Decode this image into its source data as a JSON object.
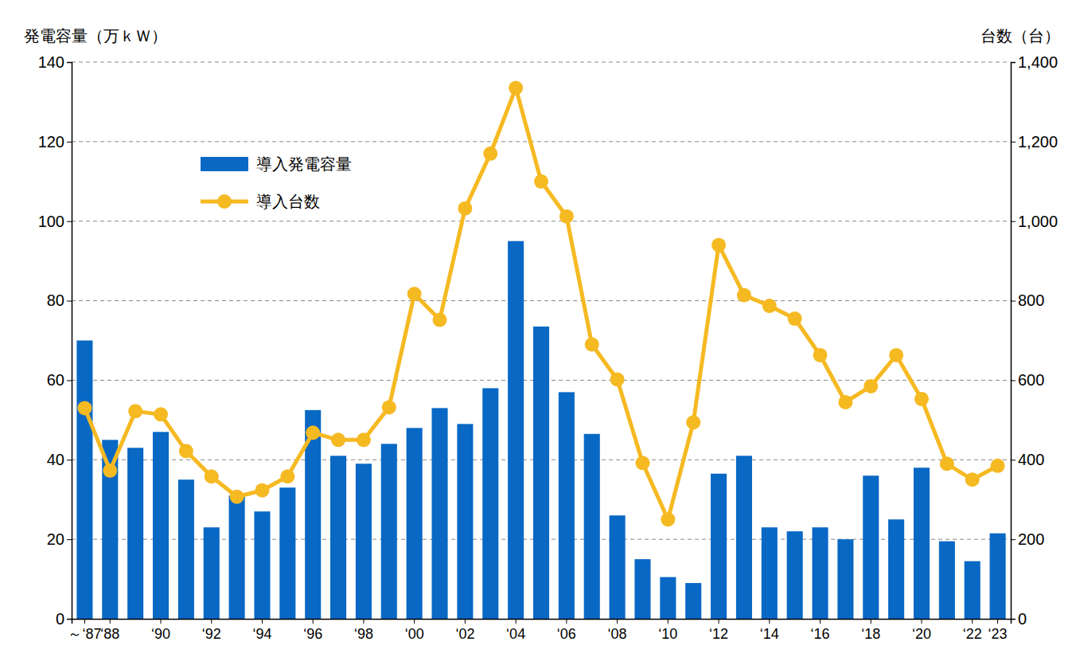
{
  "chart_data": {
    "type": "bar",
    "y_label": "発電容量（万ｋＷ）",
    "y2_label": "台数（台）",
    "categories": [
      "～‘87",
      "‘88",
      null,
      "‘90",
      null,
      "‘92",
      null,
      "‘94",
      null,
      "‘96",
      null,
      "‘98",
      null,
      "‘00",
      null,
      "‘02",
      null,
      "‘04",
      null,
      "‘06",
      null,
      "‘08",
      null,
      "‘10",
      null,
      "‘12",
      null,
      "‘14",
      null,
      "‘16",
      null,
      "‘18",
      null,
      "‘20",
      null,
      "‘22",
      "‘23"
    ],
    "series": [
      {
        "name": "導入発電容量",
        "type": "bar",
        "color": "#0868c4",
        "values": [
          70,
          45,
          43,
          47,
          35,
          23,
          31,
          27,
          33,
          52.5,
          41,
          39,
          44,
          48,
          53,
          49,
          58,
          95,
          73.5,
          57,
          46.5,
          26,
          15,
          10.5,
          9,
          36.5,
          41,
          23,
          22,
          23,
          20,
          36,
          25,
          38,
          19.5,
          14.5,
          21.5
        ]
      },
      {
        "name": "導入台数",
        "type": "line",
        "color": "#f5b922",
        "marker": "circle",
        "axis": "y2",
        "values": [
          530,
          373,
          522,
          514,
          422,
          358,
          307,
          323,
          358,
          468,
          450,
          450,
          532,
          817,
          752,
          1032,
          1170,
          1335,
          1100,
          1012,
          690,
          602,
          392,
          250,
          494,
          940,
          814,
          787,
          755,
          663,
          545,
          585,
          663,
          553,
          390,
          350,
          385
        ]
      }
    ],
    "ylim": [
      0,
      140
    ],
    "yticks": [
      0,
      20,
      40,
      60,
      80,
      100,
      120,
      140
    ],
    "y2lim": [
      0,
      1400
    ],
    "y2ticks": [
      0,
      200,
      400,
      600,
      800,
      {
        "value": 1000,
        "label": "1,000"
      },
      {
        "value": 1200,
        "label": "1,200"
      },
      {
        "value": 1400,
        "label": "1,400"
      }
    ],
    "grid": true,
    "legend": "upper left"
  }
}
